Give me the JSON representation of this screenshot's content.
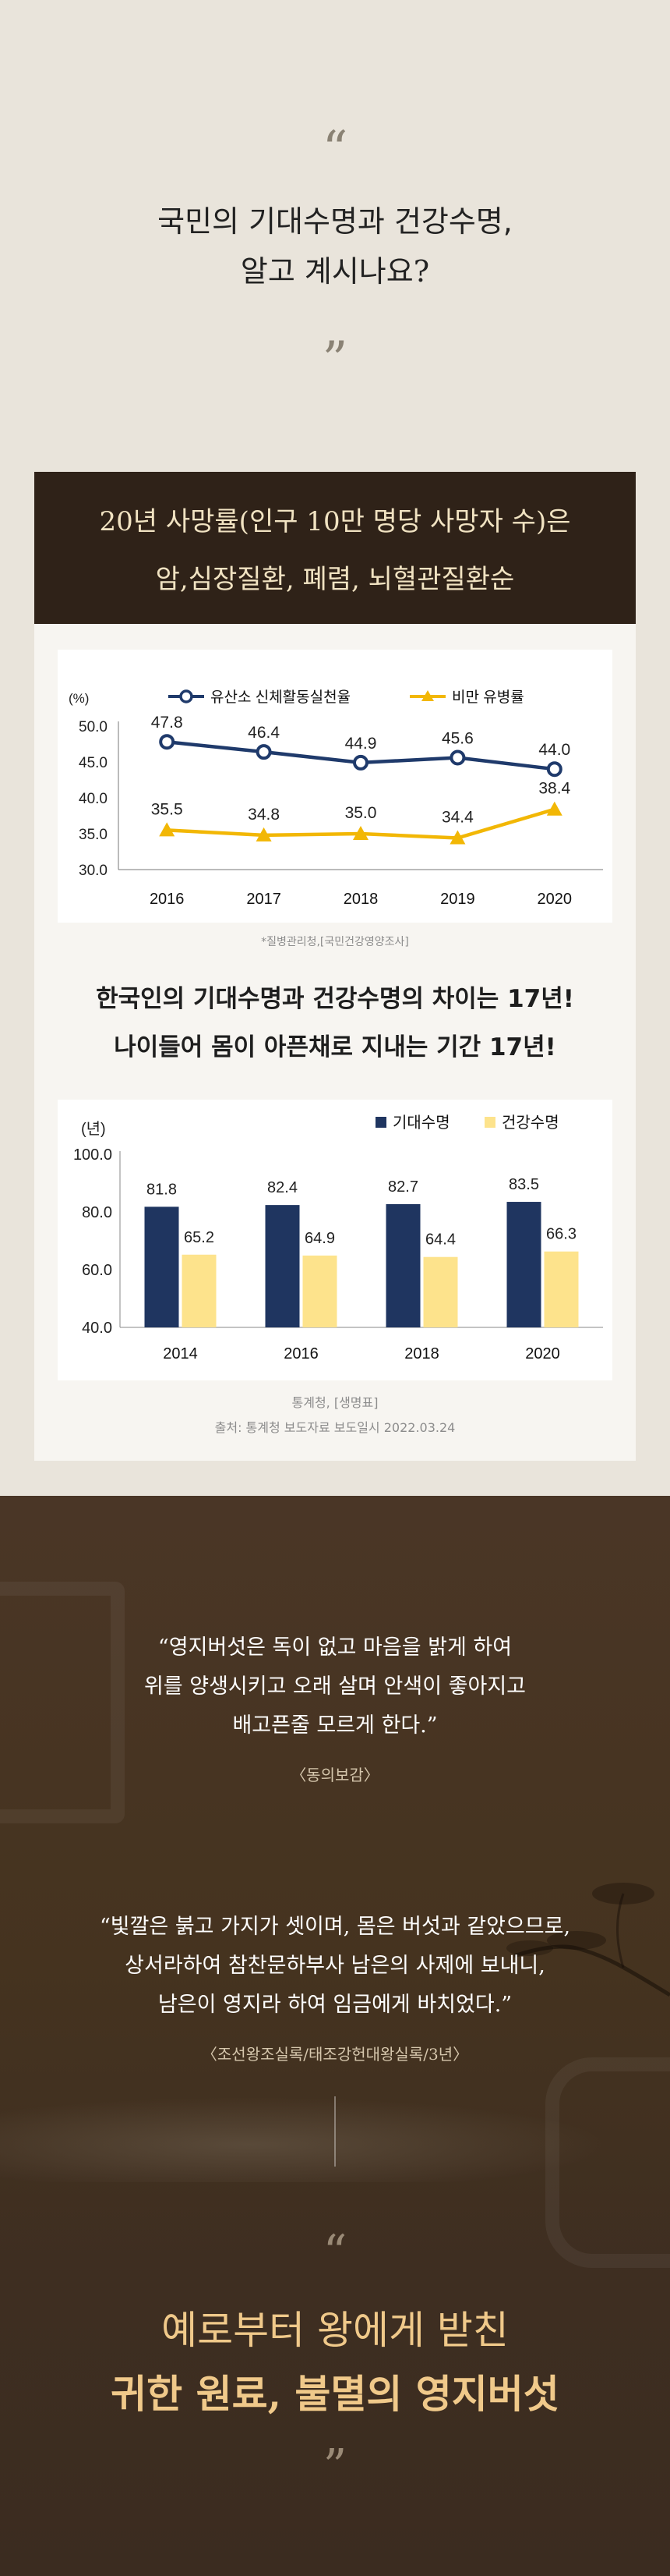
{
  "intro": {
    "quote_open": "“",
    "quote_close": "”",
    "line1": "국민의 기대수명과 건강수명,",
    "line2": "알고 계시나요?"
  },
  "card": {
    "header_line1": "20년 사망률(인구 10만 명당 사망자 수)은",
    "header_line2": "암,심장질환, 폐렴, 뇌혈관질환순",
    "source1": "*질병관리청,[국민건강영양조사]",
    "mid_line1": "한국인의 기대수명과 건강수명의 차이는 17년!",
    "mid_line2": "나이들어 몸이 아픈채로 지내는 기간 17년!",
    "source2": "통계청, [생명표]",
    "source3": "출처: 통계청 보도자료 보도일시 2022.03.24"
  },
  "chart_data": [
    {
      "type": "line",
      "unit_label": "(%)",
      "categories": [
        "2016",
        "2017",
        "2018",
        "2019",
        "2020"
      ],
      "ylim": [
        30.0,
        50.0
      ],
      "yticks": [
        "50.0",
        "45.0",
        "40.0",
        "35.0",
        "30.0"
      ],
      "series": [
        {
          "name": "유산소 신체활동실천율",
          "color": "#1f3a6b",
          "values": [
            47.8,
            46.4,
            44.9,
            45.6,
            44.0
          ],
          "labels": [
            "47.8",
            "46.4",
            "44.9",
            "45.6",
            "44.0"
          ]
        },
        {
          "name": "비만 유병률",
          "color": "#f2b705",
          "values": [
            35.5,
            34.8,
            35.0,
            34.4,
            38.4
          ],
          "labels": [
            "35.5",
            "34.8",
            "35.0",
            "34.4",
            "38.4"
          ]
        }
      ]
    },
    {
      "type": "bar",
      "unit_label": "(년)",
      "categories": [
        "2014",
        "2016",
        "2018",
        "2020"
      ],
      "ylim": [
        40.0,
        100.0
      ],
      "yticks": [
        "100.0",
        "80.0",
        "60.0",
        "40.0"
      ],
      "series": [
        {
          "name": "기대수명",
          "color": "#1f3560",
          "values": [
            81.8,
            82.4,
            82.7,
            83.5
          ],
          "labels": [
            "81.8",
            "82.4",
            "82.7",
            "83.5"
          ]
        },
        {
          "name": "건강수명",
          "color": "#fde38c",
          "values": [
            65.2,
            64.9,
            64.4,
            66.3
          ],
          "labels": [
            "65.2",
            "64.9",
            "64.4",
            "66.3"
          ]
        }
      ]
    }
  ],
  "story": {
    "quote1": [
      "“영지버섯은 독이 없고 마음을 밝게 하여",
      "위를 양생시키고 오래 살며 안색이 좋아지고",
      "배고픈줄 모르게 한다.”"
    ],
    "quote1_source": "〈동의보감〉",
    "quote2": [
      "“빛깔은 붉고 가지가 셋이며, 몸은 버섯과 같았으므로,",
      "상서라하여 참찬문하부사 남은의 사제에 보내니,",
      "남은이 영지라 하여 임금에게 바치었다.”"
    ],
    "quote2_source": "〈조선왕조실록/태조강헌대왕실록/3년〉",
    "quote_open": "“",
    "quote_close": "”",
    "final_line1": "예로부터 왕에게 받친",
    "final_line2": "귀한 원료, 불멸의 영지버섯"
  }
}
